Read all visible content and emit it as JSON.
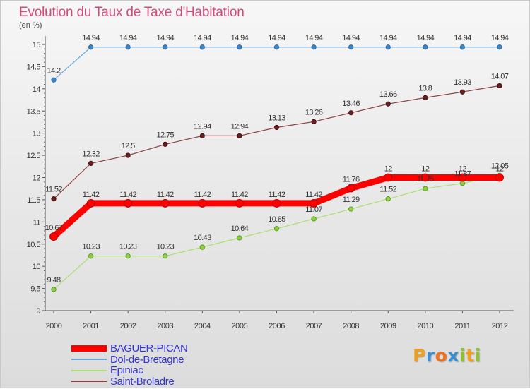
{
  "chart_data": {
    "type": "line",
    "title": "Evolution du Taux de Taxe d'Habitation",
    "unit_label": "(en %)",
    "x": [
      "2000",
      "2001",
      "2002",
      "2003",
      "2004",
      "2005",
      "2006",
      "2007",
      "2008",
      "2009",
      "2010",
      "2011",
      "2012"
    ],
    "ylim": [
      9,
      15
    ],
    "yticks": [
      "9",
      "9.5",
      "10",
      "10.5",
      "11",
      "11.5",
      "12",
      "12.5",
      "13",
      "13.5",
      "14",
      "14.5",
      "15"
    ],
    "grid": false,
    "legend_position": "bottom-left",
    "series": [
      {
        "name": "BAGUER-PICAN",
        "color": "#ff0000",
        "values": [
          10.67,
          11.42,
          11.42,
          11.42,
          11.42,
          11.42,
          11.42,
          11.42,
          11.76,
          12,
          12,
          12,
          12
        ],
        "labels": [
          "10.67",
          "11.42",
          "11.42",
          "11.42",
          "11.42",
          "11.42",
          "11.42",
          "11.42",
          "11.76",
          "12",
          "12",
          "12",
          "12"
        ]
      },
      {
        "name": "Dol-de-Bretagne",
        "color": "#5a9bd2",
        "values": [
          14.2,
          14.94,
          14.94,
          14.94,
          14.94,
          14.94,
          14.94,
          14.94,
          14.94,
          14.94,
          14.94,
          14.94,
          14.94
        ],
        "labels": [
          "14.2",
          "14.94",
          "14.94",
          "14.94",
          "14.94",
          "14.94",
          "14.94",
          "14.94",
          "14.94",
          "14.94",
          "14.94",
          "14.94",
          "14.94"
        ]
      },
      {
        "name": "Epiniac",
        "color": "#99dd55",
        "values": [
          9.48,
          10.23,
          10.23,
          10.23,
          10.43,
          10.64,
          10.85,
          11.07,
          11.29,
          11.52,
          11.75,
          11.87,
          12.05
        ],
        "labels": [
          "9.48",
          "10.23",
          "10.23",
          "10.23",
          "10.43",
          "10.64",
          "10.85",
          "11.07",
          "11.29",
          "11.52",
          "11.75",
          "11.87",
          "12.05"
        ]
      },
      {
        "name": "Saint-Broladre",
        "color": "#7a2a2a",
        "values": [
          11.52,
          12.32,
          12.5,
          12.75,
          12.94,
          12.94,
          13.13,
          13.26,
          13.46,
          13.66,
          13.8,
          13.93,
          14.07
        ],
        "labels": [
          "11.52",
          "12.32",
          "12.5",
          "12.75",
          "12.94",
          "12.94",
          "13.13",
          "13.26",
          "13.46",
          "13.66",
          "13.8",
          "13.93",
          "14.07"
        ]
      }
    ]
  },
  "brand": {
    "letters": [
      "P",
      "r",
      "o",
      "x",
      "i",
      "t",
      "i"
    ],
    "colors": [
      "#f0a020",
      "#3a8fd0",
      "#f07020",
      "#3a8fd0",
      "#90c030",
      "#f0a020",
      "#90c030"
    ]
  }
}
